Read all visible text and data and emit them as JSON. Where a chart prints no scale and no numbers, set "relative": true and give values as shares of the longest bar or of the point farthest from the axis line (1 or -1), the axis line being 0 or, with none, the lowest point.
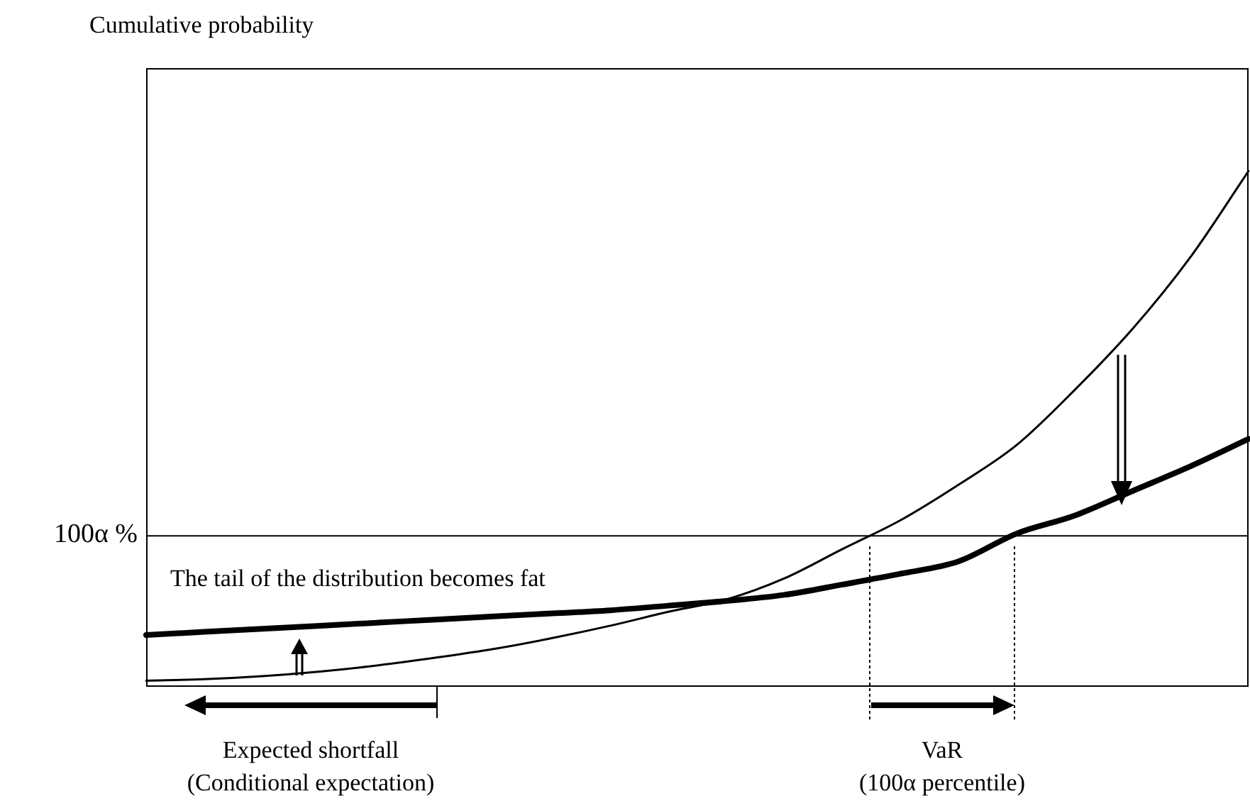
{
  "chart_data": {
    "type": "line",
    "relative": true,
    "legend": false,
    "marker": "none",
    "line_style": "solid",
    "categories": [
      null,
      null,
      null,
      null,
      null,
      null,
      null,
      null,
      null,
      null,
      null,
      null,
      null,
      null,
      null,
      null,
      null,
      null,
      null,
      null
    ],
    "series": [
      {
        "color": "#000000",
        "values": [
          0.009,
          0.012,
          0.018,
          0.027,
          0.039,
          0.054,
          0.071,
          0.092,
          0.116,
          0.143,
          0.167,
          0.208,
          0.265,
          0.321,
          0.39,
          0.467,
          0.574,
          0.693,
          0.833,
          1
        ]
      },
      {
        "color": "#000000",
        "values": [
          0.098,
          0.104,
          0.11,
          0.116,
          0.122,
          0.128,
          0.134,
          0.14,
          0.146,
          0.155,
          0.164,
          0.176,
          0.196,
          0.217,
          0.241,
          0.295,
          0.33,
          0.378,
          0.426,
          0.479
        ]
      }
    ],
    "ref_lines": [
      {
        "axis": "y",
        "value": 0.292,
        "label": "100α %",
        "color": "#000000",
        "line_style": "solid"
      }
    ],
    "annotations": [
      "Cumulative probability",
      "The tail of the distribution becomes fat",
      "Expected shortfall",
      "(Conditional expectation)",
      "VaR",
      "(100α percentile)"
    ]
  }
}
